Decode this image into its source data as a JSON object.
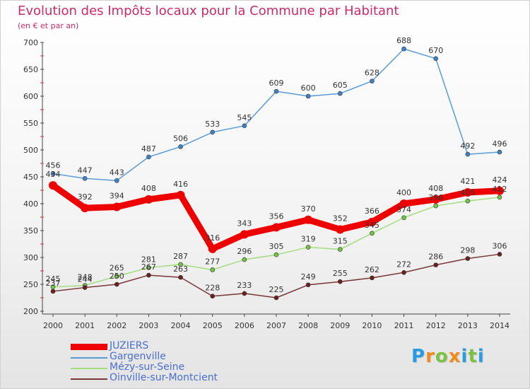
{
  "header": {
    "title": "Evolution des Impôts locaux pour la Commune par Habitant",
    "subtitle": "(en € et par an)"
  },
  "chart_data": {
    "type": "line",
    "title": "Evolution des Impôts locaux pour la Commune par Habitant",
    "subtitle": "(en € et par an)",
    "xlabel": "",
    "ylabel": "",
    "categories": [
      "2000",
      "2001",
      "2002",
      "2003",
      "2004",
      "2005",
      "2006",
      "2007",
      "2008",
      "2009",
      "2010",
      "2011",
      "2012",
      "2013",
      "2014"
    ],
    "ylim": [
      200,
      700
    ],
    "yticks": [
      200,
      250,
      300,
      350,
      400,
      450,
      500,
      550,
      600,
      650,
      700
    ],
    "grid": false,
    "legend_position": "bottom-left",
    "series": [
      {
        "name": "Gargenville",
        "color": "#5b9bd5",
        "marker": "#3f83c6",
        "values": [
          456,
          447,
          443,
          487,
          506,
          533,
          545,
          609,
          600,
          605,
          628,
          688,
          670,
          492,
          496
        ]
      },
      {
        "name": "Mézy-sur-Seine",
        "color": "#a3de7e",
        "marker": "#72c447",
        "values": [
          245,
          248,
          265,
          281,
          287,
          277,
          296,
          305,
          319,
          315,
          345,
          374,
          396,
          405,
          412
        ]
      },
      {
        "name": "Oinville-sur-Montcient",
        "color": "#7a3636",
        "marker": "#6e2020",
        "values": [
          237,
          244,
          250,
          267,
          263,
          228,
          233,
          225,
          249,
          255,
          262,
          272,
          286,
          298,
          306
        ]
      },
      {
        "name": "JUZIERS",
        "color": "#ee0000",
        "marker": "#ee0000",
        "values": [
          434,
          392,
          394,
          408,
          416,
          316,
          343,
          356,
          370,
          352,
          366,
          400,
          408,
          421,
          424
        ]
      }
    ],
    "legend_order": [
      "JUZIERS",
      "Gargenville",
      "Mézy-sur-Seine",
      "Oinville-sur-Montcient"
    ]
  },
  "legend": [
    {
      "label": "JUZIERS",
      "color": "#ee0000"
    },
    {
      "label": "Gargenville",
      "color": "#5b9bd5"
    },
    {
      "label": "Mézy-sur-Seine",
      "color": "#a3de7e"
    },
    {
      "label": "Oinville-sur-Montcient",
      "color": "#7a3636"
    }
  ],
  "logo": {
    "letters": [
      "P",
      "r",
      "o",
      "x",
      "i",
      "t",
      "i"
    ],
    "colors": [
      "#2b9be0",
      "#f08c1e",
      "#7cc242",
      "#f08c1e",
      "#2b9be0",
      "#7cc242",
      "#2b9be0"
    ]
  }
}
